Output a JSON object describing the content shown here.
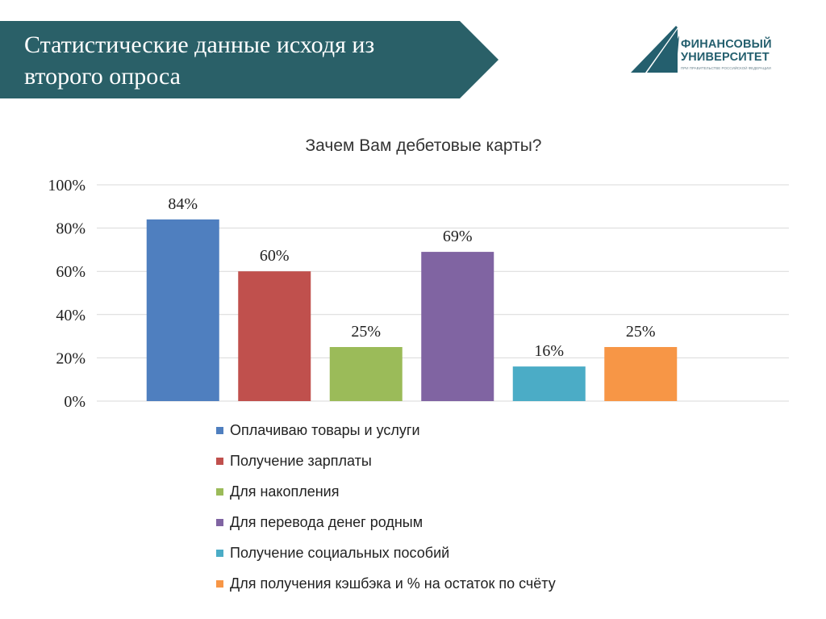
{
  "header": {
    "title": "Статистические данные исходя из второго опроса",
    "banner_color": "#2a6068"
  },
  "logo": {
    "name": "ФИНАНСОВЫЙ УНИВЕРСИТЕТ",
    "subtitle": "ПРИ ПРАВИТЕЛЬСТВЕ РОССИЙСКОЙ ФЕДЕРАЦИИ",
    "color": "#245f6e"
  },
  "chart_data": {
    "type": "bar",
    "title": "Зачем Вам дебетовые карты?",
    "categories": [
      "Оплачиваю товары и услуги",
      "Получение зарплаты",
      "Для накопления",
      "Для перевода денег родным",
      "Получение социальных пособий",
      "Для получения кэшбэка и % на остаток по счёту"
    ],
    "values": [
      84,
      60,
      25,
      69,
      16,
      25
    ],
    "data_labels": [
      "84%",
      "60%",
      "25%",
      "69%",
      "16%",
      "25%"
    ],
    "colors": [
      "#4f7fbf",
      "#c0504d",
      "#9bbb59",
      "#8064a2",
      "#4bacc6",
      "#f79646"
    ],
    "ylim": [
      0,
      100
    ],
    "yticks": [
      "0%",
      "20%",
      "40%",
      "60%",
      "80%",
      "100%"
    ],
    "grid": true,
    "legend": "bottom"
  }
}
